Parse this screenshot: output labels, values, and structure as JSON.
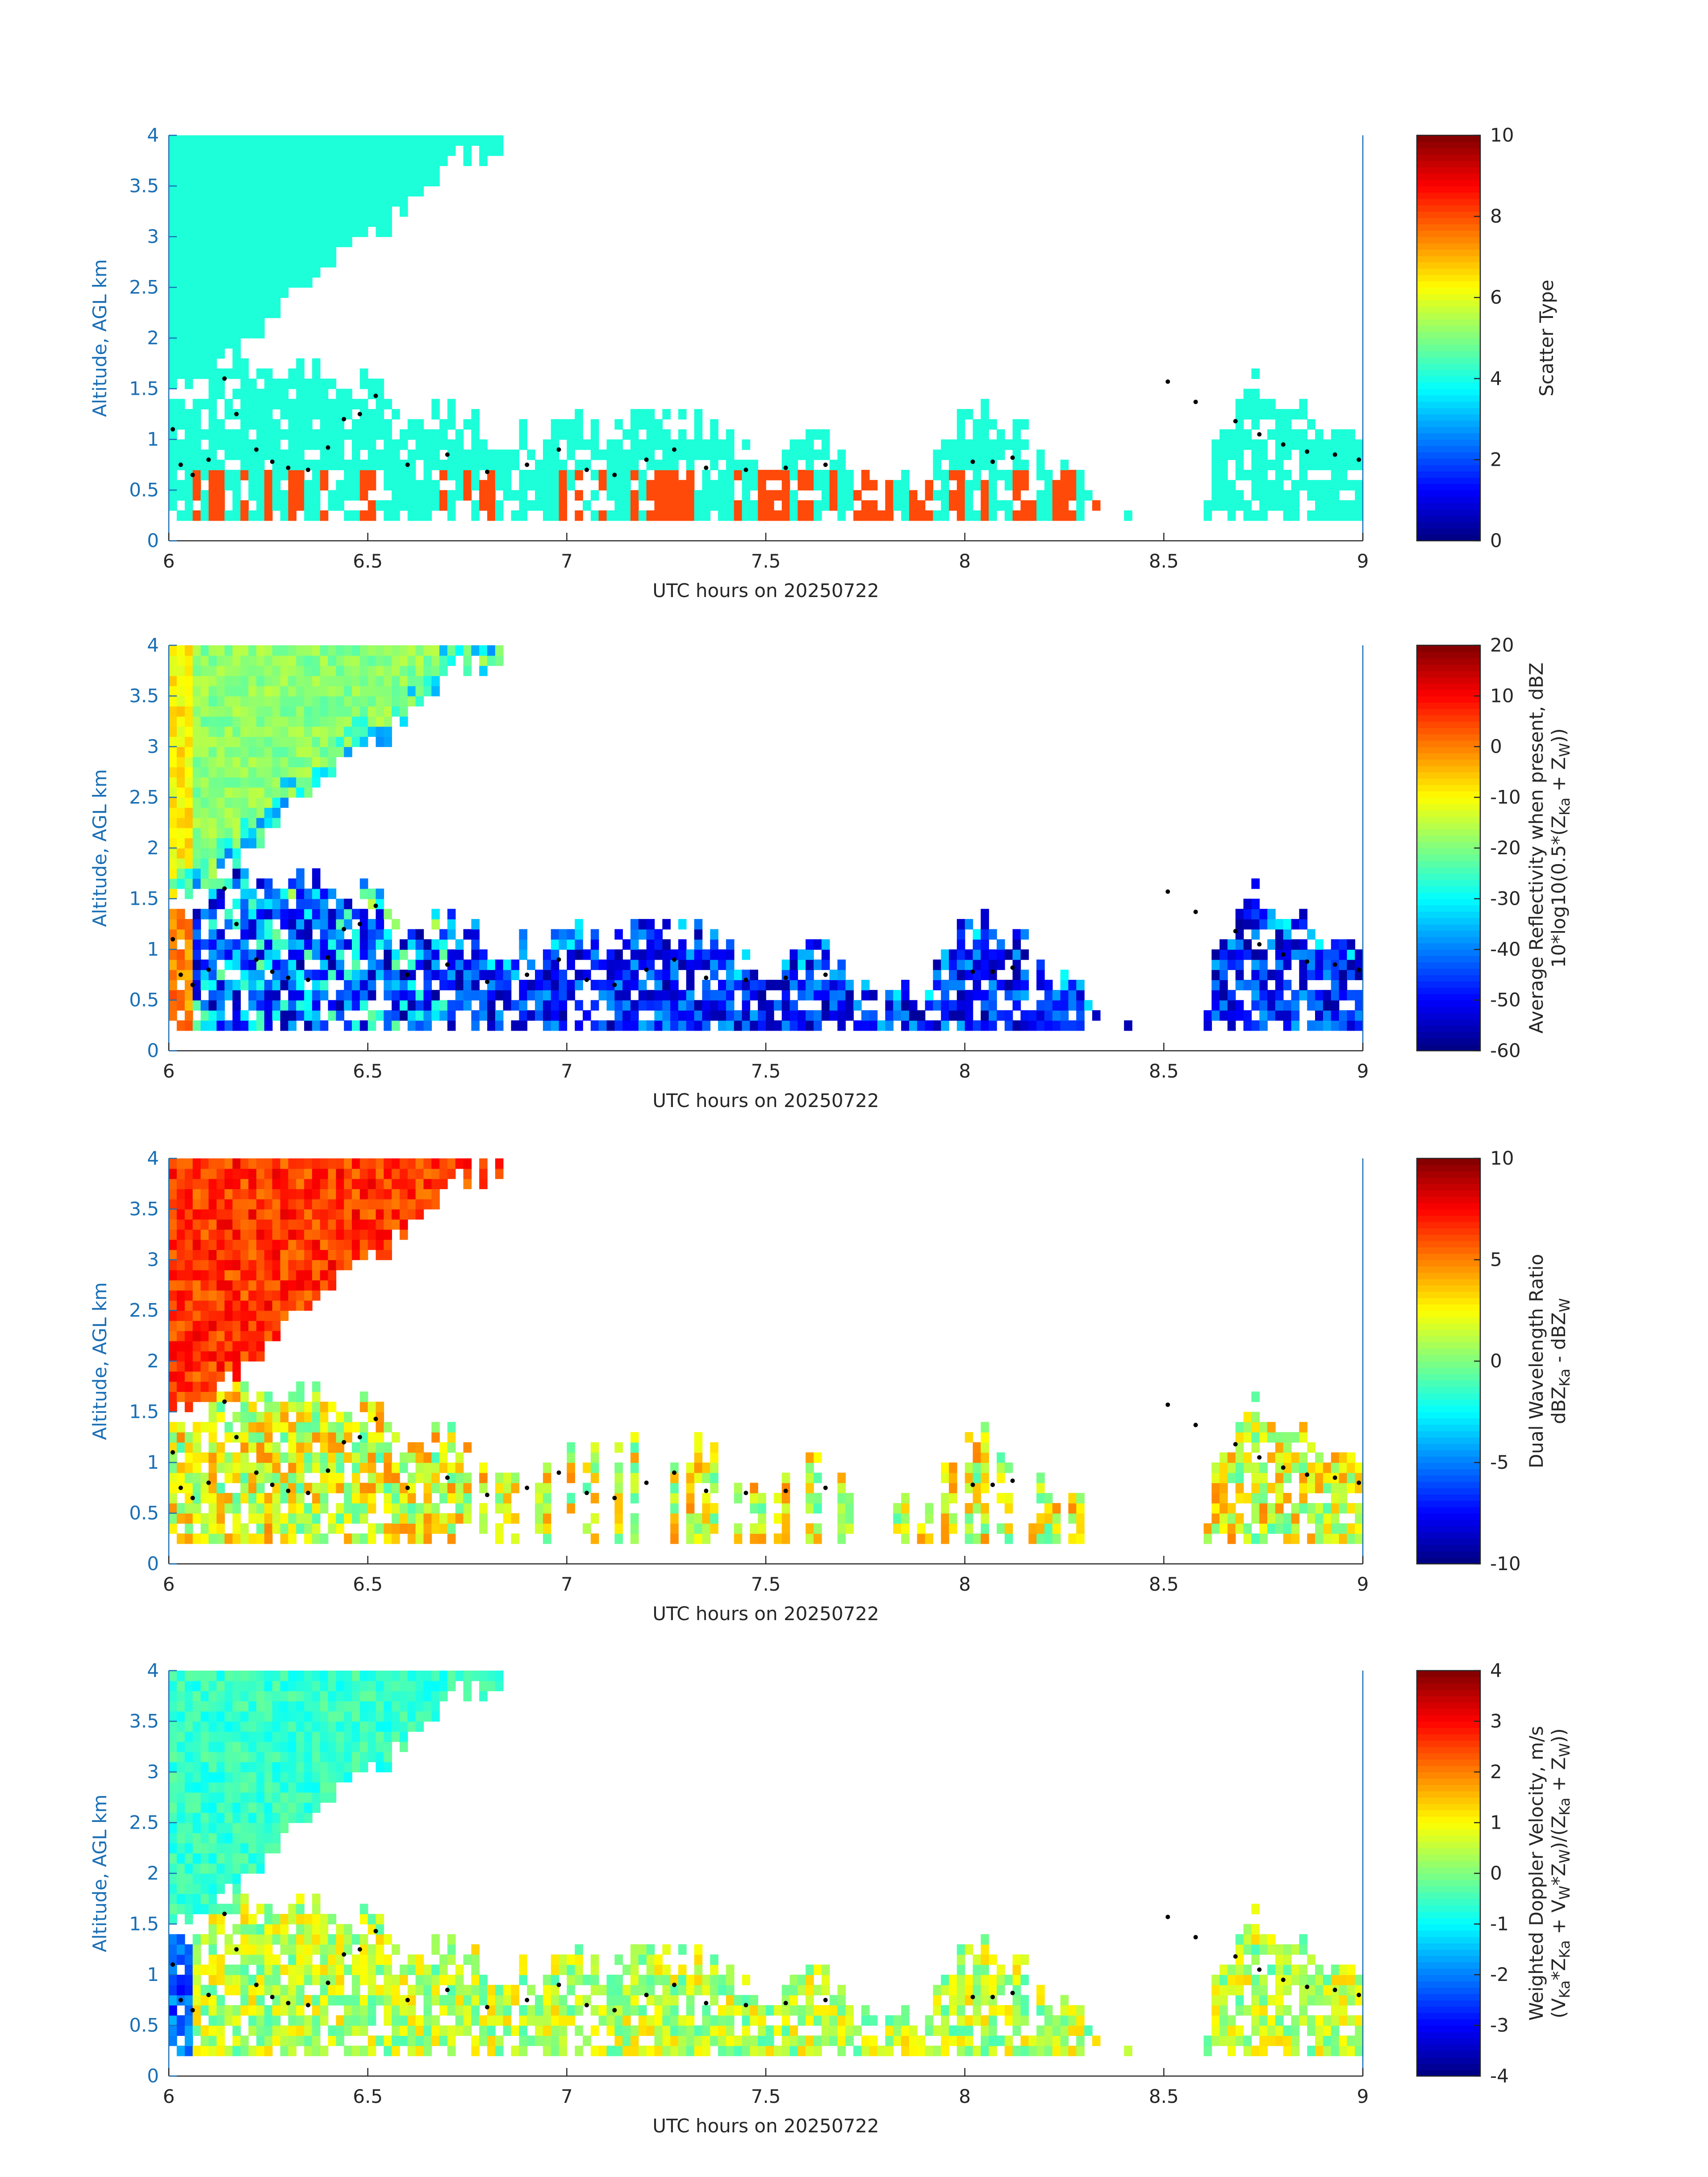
{
  "figure": {
    "background": "#ffffff",
    "axis_color": "#1a6fb5",
    "text_color": "#262626",
    "colormap": "jet"
  },
  "chart_data": [
    {
      "type": "heatmap",
      "title": "",
      "xlabel": "UTC hours on 20250722",
      "ylabel": "Altitude, AGL km",
      "xlim": [
        6,
        9
      ],
      "ylim": [
        0,
        4
      ],
      "xticks": [
        "6",
        "6.5",
        "7",
        "7.5",
        "8",
        "8.5",
        "9"
      ],
      "yticks": [
        "0",
        "0.5",
        "1",
        "1.5",
        "2",
        "2.5",
        "3",
        "3.5",
        "4"
      ],
      "colorbar": {
        "label_lines": [
          "Scatter Type"
        ],
        "range": [
          0,
          10
        ],
        "ticks": [
          "0",
          "2",
          "4",
          "6",
          "8",
          "10"
        ]
      },
      "variable": "scatter_type",
      "mode": "categorical",
      "categories_present": [
        {
          "value": 4.3,
          "color": "#1dffd9"
        },
        {
          "value": 8.3,
          "color": "#ff4a0a"
        }
      ]
    },
    {
      "type": "heatmap",
      "title": "",
      "xlabel": "UTC hours on 20250722",
      "ylabel": "Altitude, AGL km",
      "xlim": [
        6,
        9
      ],
      "ylim": [
        0,
        4
      ],
      "xticks": [
        "6",
        "6.5",
        "7",
        "7.5",
        "8",
        "8.5",
        "9"
      ],
      "yticks": [
        "0",
        "0.5",
        "1",
        "1.5",
        "2",
        "2.5",
        "3",
        "3.5",
        "4"
      ],
      "colorbar": {
        "label_lines": [
          "Average Reflectivity when present, dBZ",
          "10*log10(0.5*(Z{Ka} + Z{W}))"
        ],
        "range": [
          -60,
          20
        ],
        "ticks": [
          "-60",
          "-50",
          "-40",
          "-30",
          "-20",
          "-10",
          "0",
          "10",
          "20"
        ]
      },
      "variable": "reflectivity_dBZ",
      "mode": "continuous"
    },
    {
      "type": "heatmap",
      "title": "",
      "xlabel": "UTC hours on 20250722",
      "ylabel": "Altitude, AGL km",
      "xlim": [
        6,
        9
      ],
      "ylim": [
        0,
        4
      ],
      "xticks": [
        "6",
        "6.5",
        "7",
        "7.5",
        "8",
        "8.5",
        "9"
      ],
      "yticks": [
        "0",
        "0.5",
        "1",
        "1.5",
        "2",
        "2.5",
        "3",
        "3.5",
        "4"
      ],
      "colorbar": {
        "label_lines": [
          "Dual Wavelength Ratio",
          "dBZ{Ka} - dBZ{W}"
        ],
        "range": [
          -10,
          10
        ],
        "ticks": [
          "-10",
          "-5",
          "0",
          "5",
          "10"
        ]
      },
      "variable": "dual_wavelength_ratio_dB",
      "mode": "continuous"
    },
    {
      "type": "heatmap",
      "title": "",
      "xlabel": "UTC hours on 20250722",
      "ylabel": "Altitude, AGL km",
      "xlim": [
        6,
        9
      ],
      "ylim": [
        0,
        4
      ],
      "xticks": [
        "6",
        "6.5",
        "7",
        "7.5",
        "8",
        "8.5",
        "9"
      ],
      "yticks": [
        "0",
        "0.5",
        "1",
        "1.5",
        "2",
        "2.5",
        "3",
        "3.5",
        "4"
      ],
      "colorbar": {
        "label_lines": [
          "Weighted Doppler Velocity, m/s",
          "(V{Ka}*Z{Ka} + V{W}*Z{W})/(Z{Ka} + Z{W}))"
        ],
        "range": [
          -4,
          4
        ],
        "ticks": [
          "-4",
          "-3",
          "-2",
          "-1",
          "0",
          "1",
          "2",
          "3",
          "4"
        ]
      },
      "variable": "doppler_velocity_ms",
      "mode": "continuous"
    }
  ],
  "shared": {
    "time_hours": [
      6.0,
      6.1,
      6.2,
      6.3,
      6.4,
      6.5,
      6.6,
      6.7,
      6.8,
      6.9,
      7.0,
      7.1,
      7.2,
      7.3,
      7.4,
      7.5,
      7.6,
      7.7,
      7.8,
      7.9,
      8.0,
      8.1,
      8.2,
      8.3,
      8.4,
      8.5,
      8.6,
      8.7,
      8.8,
      8.9,
      9.0
    ],
    "lower_cloud_top_km": [
      1.3,
      1.65,
      1.7,
      1.75,
      1.65,
      1.6,
      1.2,
      1.3,
      1.05,
      1.05,
      1.2,
      1.05,
      1.25,
      1.25,
      1.1,
      0.6,
      1.2,
      0.8,
      0.55,
      0.5,
      1.4,
      1.25,
      0.9,
      0.7,
      0.3,
      0.0,
      0.45,
      1.65,
      1.45,
      1.1,
      0.95
    ],
    "lower_cloud_base_km": [
      0.2,
      0.2,
      0.2,
      0.2,
      0.2,
      0.2,
      0.25,
      0.25,
      0.25,
      0.25,
      0.25,
      0.25,
      0.25,
      0.25,
      0.25,
      0.25,
      0.25,
      0.25,
      0.25,
      0.25,
      0.25,
      0.25,
      0.25,
      0.25,
      0.25,
      0.25,
      0.25,
      0.25,
      0.25,
      0.25,
      0.25
    ],
    "upper_cloud_base_km": [
      1.5,
      1.8,
      2.4,
      2.85,
      3.1,
      3.5,
      3.8
    ],
    "upper_cloud_time_hours": [
      6.05,
      6.15,
      6.3,
      6.45,
      6.55,
      6.65,
      6.72
    ],
    "upper_cloud_top_km": 4.0,
    "upper_cloud_end_hours": 6.84,
    "lcl_markers": [
      {
        "t": 6.01,
        "z": 1.1
      },
      {
        "t": 6.03,
        "z": 0.75
      },
      {
        "t": 6.06,
        "z": 0.65
      },
      {
        "t": 6.1,
        "z": 0.8
      },
      {
        "t": 6.14,
        "z": 1.6
      },
      {
        "t": 6.17,
        "z": 1.25
      },
      {
        "t": 6.22,
        "z": 0.9
      },
      {
        "t": 6.26,
        "z": 0.78
      },
      {
        "t": 6.3,
        "z": 0.72
      },
      {
        "t": 6.35,
        "z": 0.7
      },
      {
        "t": 6.4,
        "z": 0.92
      },
      {
        "t": 6.44,
        "z": 1.2
      },
      {
        "t": 6.48,
        "z": 1.25
      },
      {
        "t": 6.52,
        "z": 1.43
      },
      {
        "t": 6.6,
        "z": 0.75
      },
      {
        "t": 6.7,
        "z": 0.85
      },
      {
        "t": 6.8,
        "z": 0.68
      },
      {
        "t": 6.9,
        "z": 0.75
      },
      {
        "t": 6.98,
        "z": 0.9
      },
      {
        "t": 7.05,
        "z": 0.7
      },
      {
        "t": 7.12,
        "z": 0.65
      },
      {
        "t": 7.2,
        "z": 0.8
      },
      {
        "t": 7.27,
        "z": 0.9
      },
      {
        "t": 7.35,
        "z": 0.72
      },
      {
        "t": 7.45,
        "z": 0.7
      },
      {
        "t": 7.55,
        "z": 0.72
      },
      {
        "t": 7.65,
        "z": 0.75
      },
      {
        "t": 8.02,
        "z": 0.78
      },
      {
        "t": 8.07,
        "z": 0.78
      },
      {
        "t": 8.12,
        "z": 0.82
      },
      {
        "t": 8.51,
        "z": 1.57
      },
      {
        "t": 8.58,
        "z": 1.37
      },
      {
        "t": 8.68,
        "z": 1.18
      },
      {
        "t": 8.74,
        "z": 1.05
      },
      {
        "t": 8.8,
        "z": 0.95
      },
      {
        "t": 8.86,
        "z": 0.88
      },
      {
        "t": 8.93,
        "z": 0.85
      },
      {
        "t": 8.99,
        "z": 0.8
      }
    ]
  }
}
